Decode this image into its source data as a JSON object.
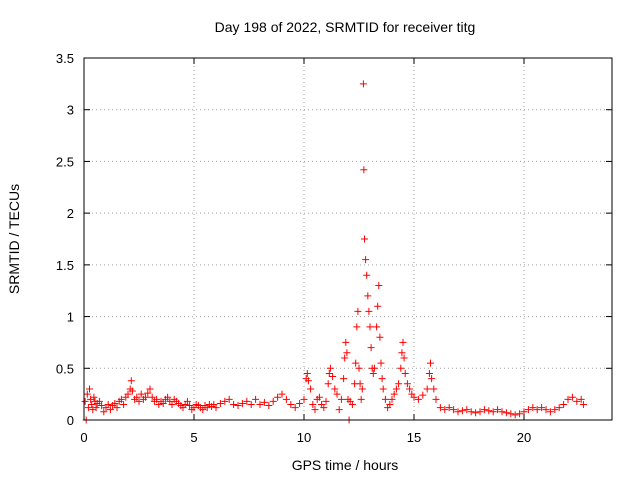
{
  "chart_data": {
    "type": "scatter",
    "title": "Day 198 of 2022, SRMTID for receiver titg",
    "xlabel": "GPS time / hours",
    "ylabel": "SRMTID / TECUs",
    "xlim": [
      0,
      24
    ],
    "ylim": [
      0,
      3.5
    ],
    "x_ticks": [
      0,
      5,
      10,
      15,
      20
    ],
    "x_tick_labels": [
      "0",
      "5",
      "10",
      "15",
      "20"
    ],
    "y_ticks": [
      0,
      0.5,
      1,
      1.5,
      2,
      2.5,
      3,
      3.5
    ],
    "y_tick_labels": [
      "0",
      "0.5",
      "1",
      "1.5",
      "2",
      "2.5",
      "3",
      "3.5"
    ],
    "grid": true,
    "marker": "+",
    "color": "#ff0000",
    "series": [
      {
        "name": "SRMTID",
        "points": [
          [
            0.05,
            0.18
          ],
          [
            0.1,
            0.0
          ],
          [
            0.15,
            0.25
          ],
          [
            0.2,
            0.12
          ],
          [
            0.25,
            0.3
          ],
          [
            0.3,
            0.2
          ],
          [
            0.35,
            0.15
          ],
          [
            0.4,
            0.1
          ],
          [
            0.45,
            0.22
          ],
          [
            0.5,
            0.18
          ],
          [
            0.55,
            0.12
          ],
          [
            0.6,
            0.16
          ],
          [
            0.7,
            0.18
          ],
          [
            0.8,
            0.14
          ],
          [
            0.9,
            0.08
          ],
          [
            1.0,
            0.12
          ],
          [
            1.1,
            0.15
          ],
          [
            1.2,
            0.1
          ],
          [
            1.3,
            0.14
          ],
          [
            1.4,
            0.16
          ],
          [
            1.5,
            0.12
          ],
          [
            1.6,
            0.18
          ],
          [
            1.7,
            0.2
          ],
          [
            1.8,
            0.15
          ],
          [
            1.9,
            0.22
          ],
          [
            2.0,
            0.25
          ],
          [
            2.1,
            0.3
          ],
          [
            2.15,
            0.38
          ],
          [
            2.2,
            0.28
          ],
          [
            2.3,
            0.2
          ],
          [
            2.4,
            0.22
          ],
          [
            2.5,
            0.18
          ],
          [
            2.6,
            0.25
          ],
          [
            2.7,
            0.2
          ],
          [
            2.8,
            0.22
          ],
          [
            2.9,
            0.26
          ],
          [
            3.0,
            0.3
          ],
          [
            3.1,
            0.22
          ],
          [
            3.2,
            0.18
          ],
          [
            3.3,
            0.2
          ],
          [
            3.4,
            0.15
          ],
          [
            3.5,
            0.18
          ],
          [
            3.6,
            0.16
          ],
          [
            3.7,
            0.2
          ],
          [
            3.8,
            0.22
          ],
          [
            3.9,
            0.18
          ],
          [
            4.0,
            0.15
          ],
          [
            4.1,
            0.2
          ],
          [
            4.2,
            0.18
          ],
          [
            4.3,
            0.16
          ],
          [
            4.4,
            0.14
          ],
          [
            4.5,
            0.12
          ],
          [
            4.6,
            0.15
          ],
          [
            4.7,
            0.18
          ],
          [
            4.8,
            0.14
          ],
          [
            4.9,
            0.1
          ],
          [
            5.0,
            0.12
          ],
          [
            5.1,
            0.15
          ],
          [
            5.2,
            0.14
          ],
          [
            5.3,
            0.12
          ],
          [
            5.4,
            0.1
          ],
          [
            5.5,
            0.14
          ],
          [
            5.6,
            0.12
          ],
          [
            5.7,
            0.15
          ],
          [
            5.8,
            0.13
          ],
          [
            5.9,
            0.15
          ],
          [
            6.0,
            0.12
          ],
          [
            6.2,
            0.16
          ],
          [
            6.4,
            0.18
          ],
          [
            6.6,
            0.2
          ],
          [
            6.8,
            0.15
          ],
          [
            7.0,
            0.14
          ],
          [
            7.2,
            0.16
          ],
          [
            7.4,
            0.18
          ],
          [
            7.6,
            0.15
          ],
          [
            7.8,
            0.2
          ],
          [
            8.0,
            0.15
          ],
          [
            8.2,
            0.17
          ],
          [
            8.4,
            0.14
          ],
          [
            8.6,
            0.18
          ],
          [
            8.8,
            0.22
          ],
          [
            9.0,
            0.25
          ],
          [
            9.2,
            0.2
          ],
          [
            9.4,
            0.15
          ],
          [
            9.6,
            0.12
          ],
          [
            9.8,
            0.16
          ],
          [
            10.0,
            0.2
          ],
          [
            10.1,
            0.4
          ],
          [
            10.15,
            0.45
          ],
          [
            10.2,
            0.38
          ],
          [
            10.3,
            0.3
          ],
          [
            10.4,
            0.15
          ],
          [
            10.5,
            0.1
          ],
          [
            10.6,
            0.2
          ],
          [
            10.7,
            0.22
          ],
          [
            10.8,
            0.15
          ],
          [
            10.9,
            0.12
          ],
          [
            11.0,
            0.18
          ],
          [
            11.1,
            0.35
          ],
          [
            11.15,
            0.45
          ],
          [
            11.2,
            0.5
          ],
          [
            11.3,
            0.42
          ],
          [
            11.4,
            0.3
          ],
          [
            11.5,
            0.25
          ],
          [
            11.6,
            0.1
          ],
          [
            11.7,
            0.2
          ],
          [
            11.8,
            0.4
          ],
          [
            11.85,
            0.6
          ],
          [
            11.9,
            0.75
          ],
          [
            11.95,
            0.65
          ],
          [
            12.0,
            0.2
          ],
          [
            12.05,
            0.0
          ],
          [
            12.1,
            0.18
          ],
          [
            12.2,
            0.15
          ],
          [
            12.3,
            0.35
          ],
          [
            12.35,
            0.55
          ],
          [
            12.4,
            0.9
          ],
          [
            12.45,
            1.05
          ],
          [
            12.5,
            0.5
          ],
          [
            12.55,
            0.35
          ],
          [
            12.6,
            0.2
          ],
          [
            12.65,
            0.3
          ],
          [
            12.7,
            3.25
          ],
          [
            12.72,
            2.42
          ],
          [
            12.75,
            1.75
          ],
          [
            12.8,
            1.55
          ],
          [
            12.85,
            1.4
          ],
          [
            12.9,
            1.2
          ],
          [
            12.95,
            1.05
          ],
          [
            13.0,
            0.9
          ],
          [
            13.05,
            0.7
          ],
          [
            13.1,
            0.5
          ],
          [
            13.15,
            0.45
          ],
          [
            13.2,
            0.5
          ],
          [
            13.3,
            0.9
          ],
          [
            13.35,
            1.1
          ],
          [
            13.4,
            1.3
          ],
          [
            13.45,
            0.8
          ],
          [
            13.5,
            0.55
          ],
          [
            13.55,
            0.4
          ],
          [
            13.6,
            0.3
          ],
          [
            13.7,
            0.2
          ],
          [
            13.8,
            0.12
          ],
          [
            13.9,
            0.15
          ],
          [
            14.0,
            0.2
          ],
          [
            14.1,
            0.25
          ],
          [
            14.2,
            0.3
          ],
          [
            14.3,
            0.35
          ],
          [
            14.4,
            0.5
          ],
          [
            14.45,
            0.65
          ],
          [
            14.5,
            0.75
          ],
          [
            14.55,
            0.6
          ],
          [
            14.6,
            0.45
          ],
          [
            14.7,
            0.35
          ],
          [
            14.8,
            0.3
          ],
          [
            14.9,
            0.25
          ],
          [
            15.0,
            0.22
          ],
          [
            15.2,
            0.2
          ],
          [
            15.4,
            0.24
          ],
          [
            15.6,
            0.3
          ],
          [
            15.7,
            0.45
          ],
          [
            15.75,
            0.55
          ],
          [
            15.8,
            0.4
          ],
          [
            15.9,
            0.3
          ],
          [
            16.0,
            0.2
          ],
          [
            16.2,
            0.12
          ],
          [
            16.4,
            0.1
          ],
          [
            16.6,
            0.12
          ],
          [
            16.8,
            0.1
          ],
          [
            17.0,
            0.08
          ],
          [
            17.2,
            0.09
          ],
          [
            17.4,
            0.1
          ],
          [
            17.6,
            0.08
          ],
          [
            17.8,
            0.07
          ],
          [
            18.0,
            0.08
          ],
          [
            18.2,
            0.1
          ],
          [
            18.4,
            0.09
          ],
          [
            18.6,
            0.08
          ],
          [
            18.8,
            0.1
          ],
          [
            19.0,
            0.08
          ],
          [
            19.2,
            0.07
          ],
          [
            19.4,
            0.06
          ],
          [
            19.6,
            0.05
          ],
          [
            19.8,
            0.06
          ],
          [
            20.0,
            0.08
          ],
          [
            20.2,
            0.1
          ],
          [
            20.4,
            0.12
          ],
          [
            20.6,
            0.1
          ],
          [
            20.8,
            0.12
          ],
          [
            21.0,
            0.1
          ],
          [
            21.2,
            0.08
          ],
          [
            21.4,
            0.1
          ],
          [
            21.6,
            0.12
          ],
          [
            21.8,
            0.15
          ],
          [
            22.0,
            0.2
          ],
          [
            22.2,
            0.22
          ],
          [
            22.4,
            0.18
          ],
          [
            22.6,
            0.2
          ],
          [
            22.7,
            0.15
          ]
        ]
      }
    ]
  }
}
